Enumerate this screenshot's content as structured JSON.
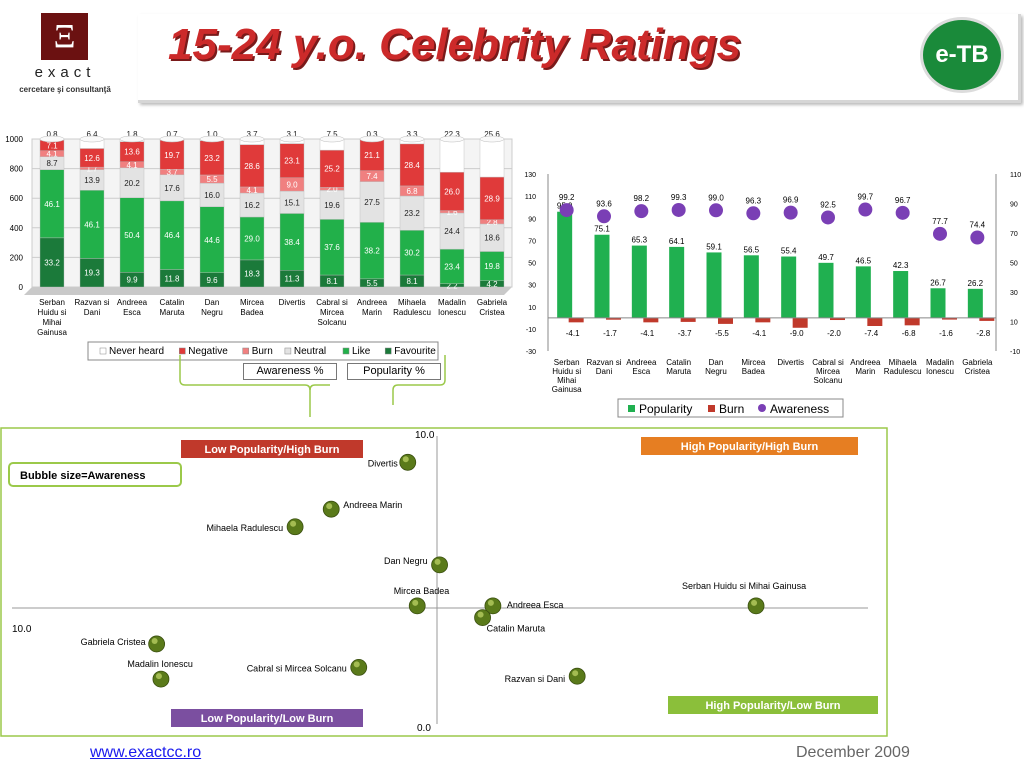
{
  "header": {
    "logo_letter": "Ξ",
    "logo_name": "exact",
    "logo_sub": "cercetare şi consultanţă",
    "title": "15-24 y.o. Celebrity Ratings",
    "brand_badge": "e-TB"
  },
  "footer": {
    "url": "www.exactcc.ro",
    "date": "December 2009"
  },
  "annotations": {
    "awareness": "Awareness %",
    "popularity": "Popularity %"
  },
  "colors": {
    "favourite": "#1b7a3a",
    "like": "#22b04a",
    "neutral": "#e3e3e3",
    "burn": "#f08080",
    "negative": "#e03a3a",
    "never_heard": "#ffffff",
    "popularity": "#20b050",
    "burn2": "#c0392b",
    "awareness": "#7a3fb5",
    "bubble": "#5a7a1a"
  },
  "chart_data": [
    {
      "type": "bar",
      "stacked": true,
      "ylim": [
        0,
        1000
      ],
      "yticks": [
        "0",
        "200",
        "400",
        "600",
        "800",
        "1000"
      ],
      "categories": [
        [
          "Serban",
          "Huidu si",
          "Mihai",
          "Gainusa"
        ],
        [
          "Razvan si",
          "Dani"
        ],
        [
          "Andreea",
          "Esca"
        ],
        [
          "Catalin",
          "Maruta"
        ],
        [
          "Dan",
          "Negru"
        ],
        [
          "Mircea",
          "Badea"
        ],
        [
          "Divertis"
        ],
        [
          "Cabral si",
          "Mircea",
          "Solcanu"
        ],
        [
          "Andreea",
          "Marin"
        ],
        [
          "Mihaela",
          "Radulescu"
        ],
        [
          "Madalin",
          "Ionescu"
        ],
        [
          "Gabriela",
          "Cristea"
        ]
      ],
      "legend": [
        "Never heard",
        "Negative",
        "Burn",
        "Neutral",
        "Like",
        "Favourite"
      ],
      "series": [
        {
          "name": "Favourite",
          "values": [
            33.2,
            19.3,
            9.9,
            11.8,
            9.6,
            18.3,
            11.3,
            8.1,
            5.5,
            8.1,
            2.2,
            4.2
          ]
        },
        {
          "name": "Like",
          "values": [
            46.1,
            46.1,
            50.4,
            46.4,
            44.6,
            29.0,
            38.4,
            37.6,
            38.2,
            30.2,
            23.4,
            19.8
          ]
        },
        {
          "name": "Neutral",
          "values": [
            8.7,
            13.9,
            20.2,
            17.6,
            16.0,
            16.2,
            15.1,
            19.6,
            27.5,
            23.2,
            24.4,
            18.6
          ]
        },
        {
          "name": "Burn",
          "values": [
            4.1,
            1.7,
            4.1,
            3.7,
            5.5,
            4.1,
            9.0,
            2.0,
            7.4,
            6.8,
            1.6,
            2.8
          ]
        },
        {
          "name": "Negative",
          "values": [
            7.1,
            12.6,
            13.6,
            19.7,
            23.2,
            28.6,
            23.1,
            25.2,
            21.1,
            28.4,
            26.0,
            28.9
          ]
        },
        {
          "name": "Never heard",
          "values": [
            0.8,
            6.4,
            1.8,
            0.7,
            1.0,
            3.7,
            3.1,
            7.5,
            0.3,
            3.3,
            22.3,
            25.6
          ]
        }
      ]
    },
    {
      "type": "bar",
      "ylim": [
        -30,
        130
      ],
      "yticks": [
        "-30",
        "-10",
        "10",
        "30",
        "50",
        "70",
        "90",
        "110",
        "130"
      ],
      "y2ticks": [
        "-10",
        "10",
        "30",
        "50",
        "70",
        "90",
        "110"
      ],
      "categories": [
        [
          "Serban",
          "Huidu si",
          "Mihai",
          "Gainusa"
        ],
        [
          "Razvan si",
          "Dani"
        ],
        [
          "Andreea",
          "Esca"
        ],
        [
          "Catalin",
          "Maruta"
        ],
        [
          "Dan",
          "Negru"
        ],
        [
          "Mircea",
          "Badea"
        ],
        [
          "Divertis"
        ],
        [
          "Cabral si",
          "Mircea",
          "Solcanu"
        ],
        [
          "Andreea",
          "Marin"
        ],
        [
          "Mihaela",
          "Radulescu"
        ],
        [
          "Madalin",
          "Ionescu"
        ],
        [
          "Gabriela",
          "Cristea"
        ]
      ],
      "series": [
        {
          "name": "Popularity",
          "values": [
            95.9,
            75.1,
            65.3,
            64.1,
            59.1,
            56.5,
            55.4,
            49.7,
            46.5,
            42.3,
            26.7,
            26.2
          ]
        },
        {
          "name": "Burn",
          "values": [
            -4.1,
            -1.7,
            -4.1,
            -3.7,
            -5.5,
            -4.1,
            -9.0,
            -2.0,
            -7.4,
            -6.8,
            -1.6,
            -2.8
          ]
        },
        {
          "name": "Awareness",
          "values": [
            99.2,
            93.6,
            98.2,
            99.3,
            99.0,
            96.3,
            96.9,
            92.5,
            99.7,
            96.7,
            77.7,
            74.4
          ]
        }
      ]
    },
    {
      "type": "scatter",
      "subtype": "bubble",
      "note": "Bubble size=Awareness",
      "axis_labels": {
        "top": "10.0",
        "bottom": "0.0",
        "left": "10.0"
      },
      "quadrants": [
        "Low Popularity/High Burn",
        "High Popularity/High Burn",
        "Low Popularity/Low Burn",
        "High Popularity/Low Burn"
      ],
      "points": [
        {
          "label": "Divertis",
          "x": 55.4,
          "y": 9.0
        },
        {
          "label": "Andreea Marin",
          "x": 46.5,
          "y": 7.4
        },
        {
          "label": "Mihaela Radulescu",
          "x": 42.3,
          "y": 6.8
        },
        {
          "label": "Dan Negru",
          "x": 59.1,
          "y": 5.5
        },
        {
          "label": "Mircea Badea",
          "x": 56.5,
          "y": 4.1
        },
        {
          "label": "Andreea Esca",
          "x": 65.3,
          "y": 4.1
        },
        {
          "label": "Catalin Maruta",
          "x": 64.1,
          "y": 3.7
        },
        {
          "label": "Serban Huidu si Mihai Gainusa",
          "x": 95.9,
          "y": 4.1
        },
        {
          "label": "Gabriela Cristea",
          "x": 26.2,
          "y": 2.8
        },
        {
          "label": "Madalin Ionescu",
          "x": 26.7,
          "y": 1.6
        },
        {
          "label": "Cabral si Mircea Solcanu",
          "x": 49.7,
          "y": 2.0
        },
        {
          "label": "Razvan si Dani",
          "x": 75.1,
          "y": 1.7
        }
      ]
    }
  ]
}
